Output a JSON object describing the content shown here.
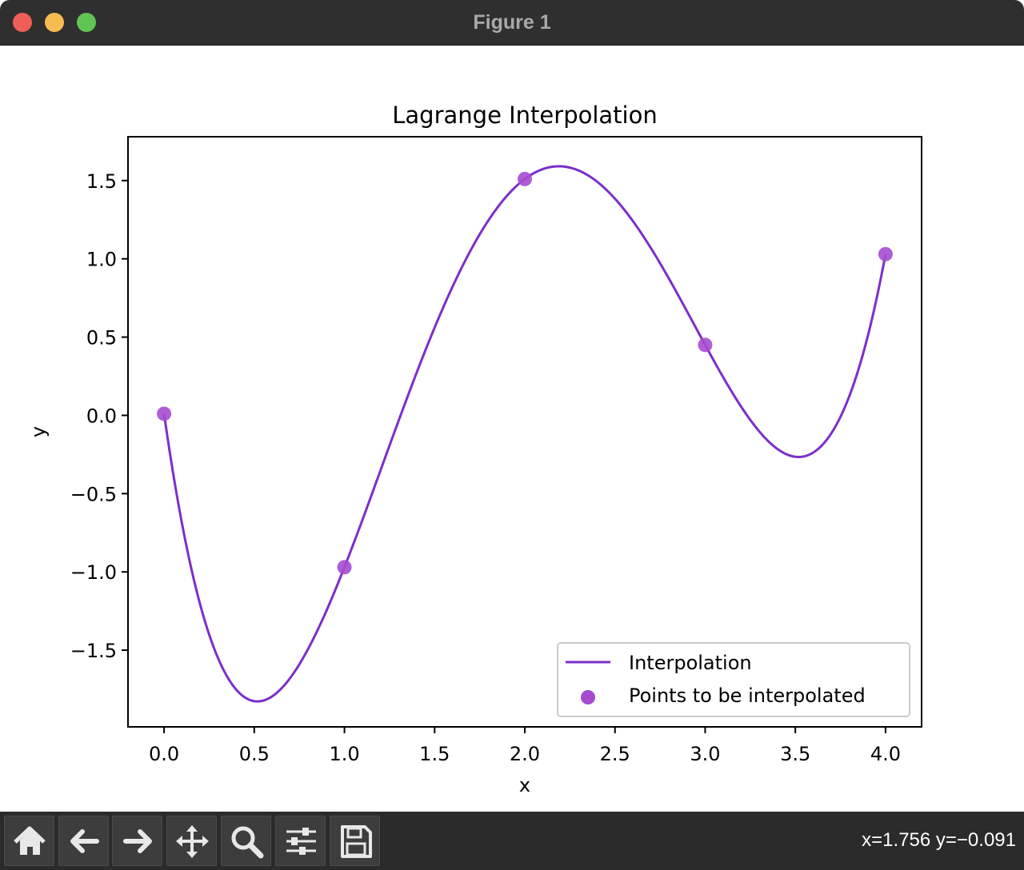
{
  "window": {
    "title": "Figure 1"
  },
  "toolbar": {
    "buttons": [
      {
        "name": "home-button",
        "icon": "home-icon"
      },
      {
        "name": "back-button",
        "icon": "arrow-left-icon"
      },
      {
        "name": "forward-button",
        "icon": "arrow-right-icon"
      },
      {
        "name": "pan-button",
        "icon": "move-icon"
      },
      {
        "name": "zoom-button",
        "icon": "magnifier-icon"
      },
      {
        "name": "configure-subplots-button",
        "icon": "sliders-icon"
      },
      {
        "name": "save-button",
        "icon": "floppy-disk-icon"
      }
    ],
    "coords": "x=1.756 y=−0.091"
  },
  "chart_data": {
    "type": "line",
    "title": "Lagrange Interpolation",
    "xlabel": "x",
    "ylabel": "y",
    "xlim": [
      -0.2,
      4.2
    ],
    "ylim": [
      -1.99,
      1.78
    ],
    "xticks": [
      0.0,
      0.5,
      1.0,
      1.5,
      2.0,
      2.5,
      3.0,
      3.5,
      4.0
    ],
    "xtick_labels": [
      "0.0",
      "0.5",
      "1.0",
      "1.5",
      "2.0",
      "2.5",
      "3.0",
      "3.5",
      "4.0"
    ],
    "yticks": [
      -1.5,
      -1.0,
      -0.5,
      0.0,
      0.5,
      1.0,
      1.5
    ],
    "ytick_labels": [
      "−1.5",
      "−1.0",
      "−0.5",
      "0.0",
      "0.5",
      "1.0",
      "1.5"
    ],
    "grid": false,
    "legend_position": "lower-right",
    "series": [
      {
        "name": "Interpolation",
        "kind": "line",
        "color": "#7b2fc9",
        "interpolates_points": "Points to be interpolated"
      },
      {
        "name": "Points to be interpolated",
        "kind": "scatter",
        "color": "#a64bd0",
        "x": [
          0.0,
          1.0,
          2.0,
          3.0,
          4.0
        ],
        "y": [
          0.01,
          -0.97,
          1.51,
          0.45,
          1.03
        ]
      }
    ]
  }
}
